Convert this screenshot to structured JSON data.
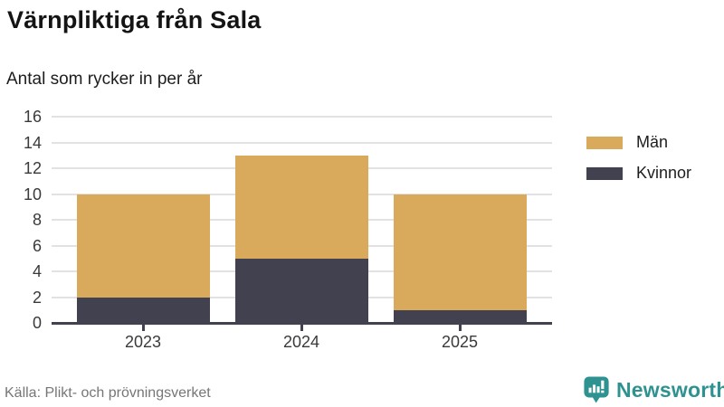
{
  "header": {
    "title": "Värnpliktiga från Sala",
    "subtitle": "Antal som rycker in per år"
  },
  "chart_data": {
    "type": "bar",
    "stacked": true,
    "categories": [
      "2023",
      "2024",
      "2025"
    ],
    "series": [
      {
        "name": "Män",
        "color": "#d9aa5c",
        "values": [
          8,
          8,
          9
        ]
      },
      {
        "name": "Kvinnor",
        "color": "#424150",
        "values": [
          2,
          5,
          1
        ]
      }
    ],
    "stack_order_bottom_to_top": [
      "Kvinnor",
      "Män"
    ],
    "totals": [
      10,
      13,
      10
    ],
    "title": "Värnpliktiga från Sala",
    "subtitle": "Antal som rycker in per år",
    "xlabel": "",
    "ylabel": "",
    "ylim": [
      0,
      16
    ],
    "ytick_step": 2,
    "yticks": [
      0,
      2,
      4,
      6,
      8,
      10,
      12,
      14,
      16
    ],
    "grid": true,
    "legend_position": "right"
  },
  "legend": {
    "items": [
      {
        "label": "Män",
        "color": "#d9aa5c"
      },
      {
        "label": "Kvinnor",
        "color": "#424150"
      }
    ]
  },
  "colors": {
    "grid": "#e2e2e2",
    "axis": "#424150",
    "tick_text": "#3a3a3a"
  },
  "footer": {
    "source": "Källa: Plikt- och prövningsverket",
    "brand": "Newsworthy",
    "brand_color": "#2e9290"
  }
}
